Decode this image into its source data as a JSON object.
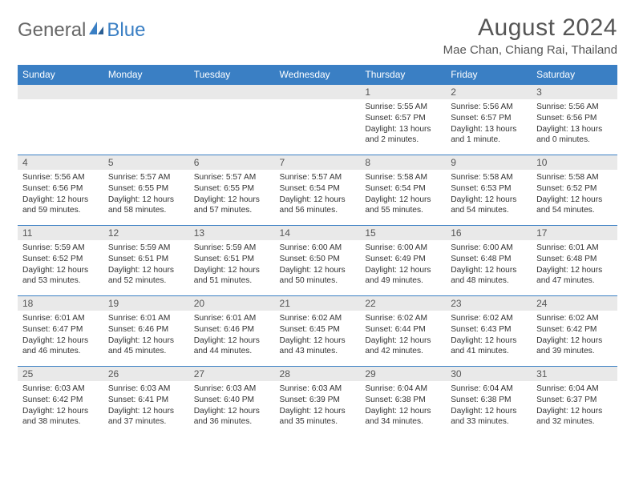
{
  "brand": {
    "general": "General",
    "blue": "Blue",
    "icon_color": "#3a7fc4"
  },
  "title": "August 2024",
  "location": "Mae Chan, Chiang Rai, Thailand",
  "colors": {
    "header_bg": "#3a7fc4",
    "header_text": "#ffffff",
    "daynum_bg": "#e9e9e9",
    "cell_border": "#3a7fc4",
    "text": "#333333",
    "logo_gray": "#666666"
  },
  "day_headers": [
    "Sunday",
    "Monday",
    "Tuesday",
    "Wednesday",
    "Thursday",
    "Friday",
    "Saturday"
  ],
  "weeks": [
    [
      {
        "day": "",
        "sunrise": "",
        "sunset": "",
        "daylight": ""
      },
      {
        "day": "",
        "sunrise": "",
        "sunset": "",
        "daylight": ""
      },
      {
        "day": "",
        "sunrise": "",
        "sunset": "",
        "daylight": ""
      },
      {
        "day": "",
        "sunrise": "",
        "sunset": "",
        "daylight": ""
      },
      {
        "day": "1",
        "sunrise": "Sunrise: 5:55 AM",
        "sunset": "Sunset: 6:57 PM",
        "daylight": "Daylight: 13 hours and 2 minutes."
      },
      {
        "day": "2",
        "sunrise": "Sunrise: 5:56 AM",
        "sunset": "Sunset: 6:57 PM",
        "daylight": "Daylight: 13 hours and 1 minute."
      },
      {
        "day": "3",
        "sunrise": "Sunrise: 5:56 AM",
        "sunset": "Sunset: 6:56 PM",
        "daylight": "Daylight: 13 hours and 0 minutes."
      }
    ],
    [
      {
        "day": "4",
        "sunrise": "Sunrise: 5:56 AM",
        "sunset": "Sunset: 6:56 PM",
        "daylight": "Daylight: 12 hours and 59 minutes."
      },
      {
        "day": "5",
        "sunrise": "Sunrise: 5:57 AM",
        "sunset": "Sunset: 6:55 PM",
        "daylight": "Daylight: 12 hours and 58 minutes."
      },
      {
        "day": "6",
        "sunrise": "Sunrise: 5:57 AM",
        "sunset": "Sunset: 6:55 PM",
        "daylight": "Daylight: 12 hours and 57 minutes."
      },
      {
        "day": "7",
        "sunrise": "Sunrise: 5:57 AM",
        "sunset": "Sunset: 6:54 PM",
        "daylight": "Daylight: 12 hours and 56 minutes."
      },
      {
        "day": "8",
        "sunrise": "Sunrise: 5:58 AM",
        "sunset": "Sunset: 6:54 PM",
        "daylight": "Daylight: 12 hours and 55 minutes."
      },
      {
        "day": "9",
        "sunrise": "Sunrise: 5:58 AM",
        "sunset": "Sunset: 6:53 PM",
        "daylight": "Daylight: 12 hours and 54 minutes."
      },
      {
        "day": "10",
        "sunrise": "Sunrise: 5:58 AM",
        "sunset": "Sunset: 6:52 PM",
        "daylight": "Daylight: 12 hours and 54 minutes."
      }
    ],
    [
      {
        "day": "11",
        "sunrise": "Sunrise: 5:59 AM",
        "sunset": "Sunset: 6:52 PM",
        "daylight": "Daylight: 12 hours and 53 minutes."
      },
      {
        "day": "12",
        "sunrise": "Sunrise: 5:59 AM",
        "sunset": "Sunset: 6:51 PM",
        "daylight": "Daylight: 12 hours and 52 minutes."
      },
      {
        "day": "13",
        "sunrise": "Sunrise: 5:59 AM",
        "sunset": "Sunset: 6:51 PM",
        "daylight": "Daylight: 12 hours and 51 minutes."
      },
      {
        "day": "14",
        "sunrise": "Sunrise: 6:00 AM",
        "sunset": "Sunset: 6:50 PM",
        "daylight": "Daylight: 12 hours and 50 minutes."
      },
      {
        "day": "15",
        "sunrise": "Sunrise: 6:00 AM",
        "sunset": "Sunset: 6:49 PM",
        "daylight": "Daylight: 12 hours and 49 minutes."
      },
      {
        "day": "16",
        "sunrise": "Sunrise: 6:00 AM",
        "sunset": "Sunset: 6:48 PM",
        "daylight": "Daylight: 12 hours and 48 minutes."
      },
      {
        "day": "17",
        "sunrise": "Sunrise: 6:01 AM",
        "sunset": "Sunset: 6:48 PM",
        "daylight": "Daylight: 12 hours and 47 minutes."
      }
    ],
    [
      {
        "day": "18",
        "sunrise": "Sunrise: 6:01 AM",
        "sunset": "Sunset: 6:47 PM",
        "daylight": "Daylight: 12 hours and 46 minutes."
      },
      {
        "day": "19",
        "sunrise": "Sunrise: 6:01 AM",
        "sunset": "Sunset: 6:46 PM",
        "daylight": "Daylight: 12 hours and 45 minutes."
      },
      {
        "day": "20",
        "sunrise": "Sunrise: 6:01 AM",
        "sunset": "Sunset: 6:46 PM",
        "daylight": "Daylight: 12 hours and 44 minutes."
      },
      {
        "day": "21",
        "sunrise": "Sunrise: 6:02 AM",
        "sunset": "Sunset: 6:45 PM",
        "daylight": "Daylight: 12 hours and 43 minutes."
      },
      {
        "day": "22",
        "sunrise": "Sunrise: 6:02 AM",
        "sunset": "Sunset: 6:44 PM",
        "daylight": "Daylight: 12 hours and 42 minutes."
      },
      {
        "day": "23",
        "sunrise": "Sunrise: 6:02 AM",
        "sunset": "Sunset: 6:43 PM",
        "daylight": "Daylight: 12 hours and 41 minutes."
      },
      {
        "day": "24",
        "sunrise": "Sunrise: 6:02 AM",
        "sunset": "Sunset: 6:42 PM",
        "daylight": "Daylight: 12 hours and 39 minutes."
      }
    ],
    [
      {
        "day": "25",
        "sunrise": "Sunrise: 6:03 AM",
        "sunset": "Sunset: 6:42 PM",
        "daylight": "Daylight: 12 hours and 38 minutes."
      },
      {
        "day": "26",
        "sunrise": "Sunrise: 6:03 AM",
        "sunset": "Sunset: 6:41 PM",
        "daylight": "Daylight: 12 hours and 37 minutes."
      },
      {
        "day": "27",
        "sunrise": "Sunrise: 6:03 AM",
        "sunset": "Sunset: 6:40 PM",
        "daylight": "Daylight: 12 hours and 36 minutes."
      },
      {
        "day": "28",
        "sunrise": "Sunrise: 6:03 AM",
        "sunset": "Sunset: 6:39 PM",
        "daylight": "Daylight: 12 hours and 35 minutes."
      },
      {
        "day": "29",
        "sunrise": "Sunrise: 6:04 AM",
        "sunset": "Sunset: 6:38 PM",
        "daylight": "Daylight: 12 hours and 34 minutes."
      },
      {
        "day": "30",
        "sunrise": "Sunrise: 6:04 AM",
        "sunset": "Sunset: 6:38 PM",
        "daylight": "Daylight: 12 hours and 33 minutes."
      },
      {
        "day": "31",
        "sunrise": "Sunrise: 6:04 AM",
        "sunset": "Sunset: 6:37 PM",
        "daylight": "Daylight: 12 hours and 32 minutes."
      }
    ]
  ]
}
